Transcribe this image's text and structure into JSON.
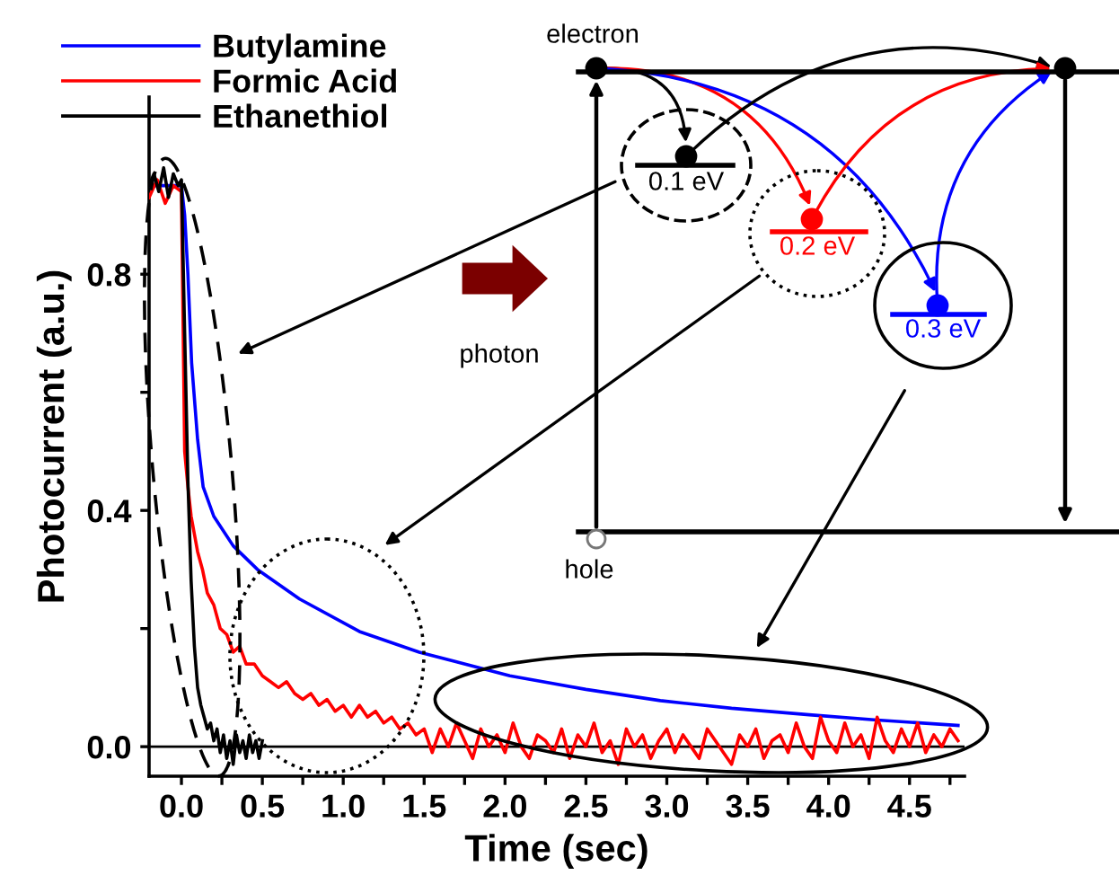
{
  "chart_data": {
    "type": "line",
    "xlabel": "Time (sec)",
    "ylabel": "Photocurrent (a.u.)",
    "xlim": [
      -0.2,
      4.84
    ],
    "ylim": [
      -0.05,
      1.1
    ],
    "xticks": [
      {
        "value": 0,
        "label": "0.0"
      },
      {
        "value": 0.25,
        "label": null
      },
      0.5,
      {
        "value": 0.75,
        "label": null
      },
      {
        "value": 1,
        "label": "1.0"
      },
      {
        "value": 1.25,
        "label": null
      },
      1.5,
      {
        "value": 1.75,
        "label": null
      },
      {
        "value": 2,
        "label": "2.0"
      },
      {
        "value": 2.25,
        "label": null
      },
      2.5,
      {
        "value": 2.75,
        "label": null
      },
      {
        "value": 3,
        "label": "3.0"
      },
      {
        "value": 3.25,
        "label": null
      },
      3.5,
      {
        "value": 3.75,
        "label": null
      },
      {
        "value": 4,
        "label": "4.0"
      },
      {
        "value": 4.25,
        "label": null
      },
      4.5,
      {
        "value": 4.75,
        "label": null
      }
    ],
    "yticks": [
      {
        "value": 0,
        "label": "0.0"
      },
      {
        "value": 0.2,
        "label": null
      },
      0.4,
      {
        "value": 0.6,
        "label": null
      },
      0.8
    ],
    "grid": false,
    "legend": "top left",
    "line_style": "solid",
    "marker": "none",
    "ref_lines": [
      {
        "axis": "y",
        "value": 0,
        "color": "#000000"
      }
    ],
    "annotations": [
      "photon",
      "electron",
      "hole",
      "0.1 eV",
      "0.2 eV",
      "0.3 eV"
    ],
    "series": [
      {
        "name": "Butylamine",
        "color": "#0000ff",
        "x": [
          -0.2,
          -0.1,
          0,
          0.02,
          0.04,
          0.063,
          0.1,
          0.134,
          0.2,
          0.32,
          0.47,
          0.73,
          1.1,
          1.47,
          2.03,
          2.5,
          2.96,
          3.4,
          3.88,
          4.3,
          4.8
        ],
        "values": [
          0.95,
          0.95,
          0.95,
          0.9,
          0.8,
          0.65,
          0.52,
          0.44,
          0.39,
          0.34,
          0.3,
          0.25,
          0.195,
          0.16,
          0.12,
          0.097,
          0.078,
          0.065,
          0.054,
          0.045,
          0.036
        ]
      },
      {
        "name": "Formic Acid",
        "color": "#ff0000",
        "x": [
          -0.2,
          -0.15,
          -0.1,
          -0.05,
          0,
          0.02,
          0.04,
          0.06,
          0.08,
          0.1,
          0.13,
          0.16,
          0.2,
          0.24,
          0.28,
          0.32,
          0.36,
          0.4,
          0.45,
          0.5,
          0.55,
          0.6,
          0.65,
          0.7,
          0.75,
          0.8,
          0.85,
          0.9,
          0.95,
          1.0,
          1.05,
          1.1,
          1.15,
          1.2,
          1.25,
          1.3,
          1.35,
          1.4,
          1.45,
          1.5,
          1.55,
          1.6,
          1.65,
          1.7,
          1.75,
          1.8,
          1.85,
          1.9,
          1.95,
          2.0,
          2.05,
          2.1,
          2.15,
          2.2,
          2.25,
          2.3,
          2.35,
          2.4,
          2.45,
          2.5,
          2.55,
          2.6,
          2.65,
          2.7,
          2.75,
          2.8,
          2.85,
          2.9,
          2.95,
          3.0,
          3.05,
          3.1,
          3.15,
          3.2,
          3.25,
          3.3,
          3.35,
          3.4,
          3.45,
          3.5,
          3.55,
          3.6,
          3.65,
          3.7,
          3.75,
          3.8,
          3.85,
          3.9,
          3.95,
          4.0,
          4.05,
          4.1,
          4.15,
          4.2,
          4.25,
          4.3,
          4.35,
          4.4,
          4.45,
          4.5,
          4.55,
          4.6,
          4.65,
          4.7,
          4.75,
          4.8
        ],
        "values": [
          0.93,
          0.96,
          0.92,
          0.95,
          0.94,
          0.5,
          0.44,
          0.39,
          0.36,
          0.33,
          0.3,
          0.26,
          0.24,
          0.2,
          0.19,
          0.16,
          0.17,
          0.14,
          0.14,
          0.12,
          0.11,
          0.1,
          0.11,
          0.09,
          0.08,
          0.09,
          0.07,
          0.08,
          0.06,
          0.07,
          0.05,
          0.07,
          0.05,
          0.06,
          0.04,
          0.05,
          0.03,
          0.04,
          0.02,
          0.03,
          -0.01,
          0.03,
          0.0,
          0.04,
          0.01,
          -0.02,
          0.03,
          0.0,
          0.02,
          -0.01,
          0.04,
          0.0,
          -0.02,
          0.02,
          0.01,
          -0.01,
          0.03,
          -0.02,
          0.02,
          0.0,
          0.04,
          -0.01,
          0.01,
          -0.03,
          0.03,
          0.0,
          0.02,
          -0.02,
          0.01,
          0.03,
          -0.01,
          0.02,
          0.0,
          -0.02,
          0.03,
          0.01,
          -0.01,
          -0.03,
          0.02,
          0.0,
          0.03,
          -0.02,
          0.01,
          0.02,
          -0.01,
          0.04,
          0.0,
          -0.02,
          0.05,
          0.01,
          -0.01,
          0.04,
          0.0,
          0.02,
          -0.02,
          0.05,
          0.01,
          -0.01,
          0.03,
          0.0,
          0.04,
          -0.01,
          0.02,
          0.0,
          0.03,
          0.01
        ]
      },
      {
        "name": "Ethanethiol",
        "color": "#000000",
        "x": [
          -0.2,
          -0.17,
          -0.14,
          -0.11,
          -0.08,
          -0.05,
          -0.02,
          0,
          0.02,
          0.04,
          0.06,
          0.08,
          0.1,
          0.12,
          0.14,
          0.16,
          0.18,
          0.2,
          0.22,
          0.24,
          0.26,
          0.28,
          0.3,
          0.32,
          0.34,
          0.36,
          0.38,
          0.4,
          0.42,
          0.44,
          0.46,
          0.48,
          0.5
        ],
        "values": [
          0.95,
          0.97,
          0.94,
          0.98,
          0.93,
          0.97,
          0.95,
          0.96,
          0.7,
          0.45,
          0.28,
          0.17,
          0.1,
          0.07,
          0.05,
          0.03,
          0.04,
          0.01,
          0.03,
          -0.01,
          0.02,
          -0.02,
          0.01,
          -0.03,
          0.02,
          -0.01,
          0.01,
          -0.02,
          0.02,
          -0.01,
          0.01,
          -0.02,
          0.01
        ]
      }
    ]
  }
}
